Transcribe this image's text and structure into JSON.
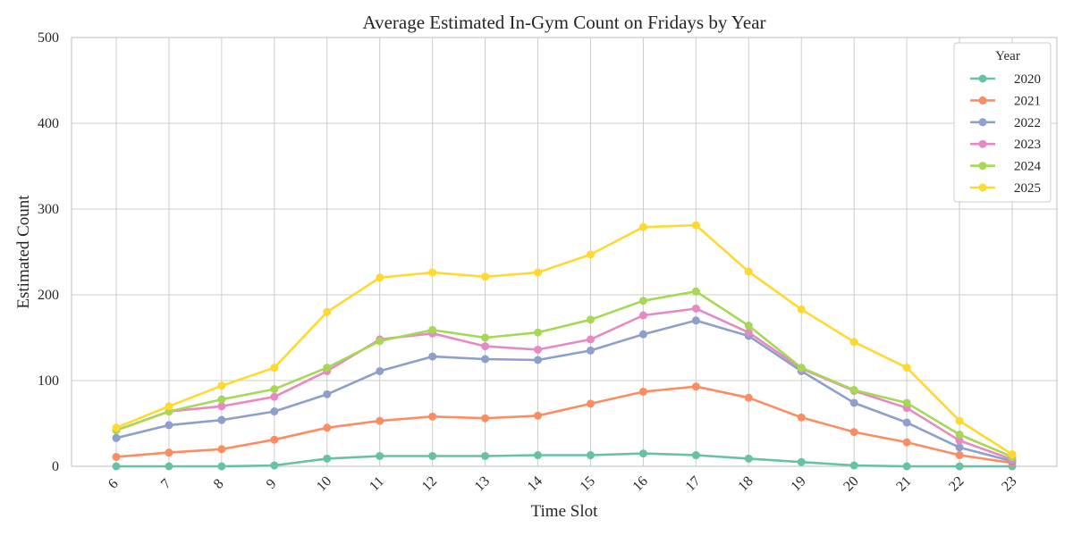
{
  "chart_data": {
    "type": "line",
    "title": "Average Estimated In-Gym Count on Fridays by Year",
    "xlabel": "Time Slot",
    "ylabel": "Estimated Count",
    "x": [
      "6",
      "7",
      "8",
      "9",
      "10",
      "11",
      "12",
      "13",
      "14",
      "15",
      "16",
      "17",
      "18",
      "19",
      "20",
      "21",
      "22",
      "23"
    ],
    "ylim": [
      0,
      500
    ],
    "yticks": [
      "0",
      "100",
      "200",
      "300",
      "400",
      "500"
    ],
    "grid": true,
    "legend": {
      "title": "Year",
      "position": "top-right"
    },
    "series": [
      {
        "name": "2020",
        "color": "#66c2a5",
        "values": [
          0,
          0,
          0,
          1,
          9,
          12,
          12,
          12,
          13,
          13,
          15,
          13,
          9,
          5,
          1,
          0,
          0,
          0
        ]
      },
      {
        "name": "2021",
        "color": "#fc8d62",
        "values": [
          11,
          16,
          20,
          31,
          45,
          53,
          58,
          56,
          59,
          73,
          87,
          93,
          80,
          57,
          40,
          28,
          13,
          4
        ]
      },
      {
        "name": "2022",
        "color": "#8da0cb",
        "values": [
          33,
          48,
          54,
          64,
          84,
          111,
          128,
          125,
          124,
          135,
          154,
          170,
          152,
          111,
          74,
          51,
          22,
          6
        ]
      },
      {
        "name": "2023",
        "color": "#e78ac3",
        "values": [
          42,
          64,
          70,
          81,
          111,
          148,
          155,
          140,
          136,
          148,
          176,
          184,
          156,
          114,
          88,
          68,
          30,
          8
        ]
      },
      {
        "name": "2024",
        "color": "#a6d854",
        "values": [
          42,
          64,
          78,
          90,
          115,
          146,
          159,
          150,
          156,
          171,
          193,
          204,
          164,
          115,
          89,
          74,
          37,
          11
        ]
      },
      {
        "name": "2025",
        "color": "#ffd92f",
        "values": [
          45,
          70,
          94,
          115,
          180,
          220,
          226,
          221,
          226,
          247,
          279,
          281,
          227,
          183,
          145,
          115,
          53,
          14
        ]
      }
    ]
  }
}
